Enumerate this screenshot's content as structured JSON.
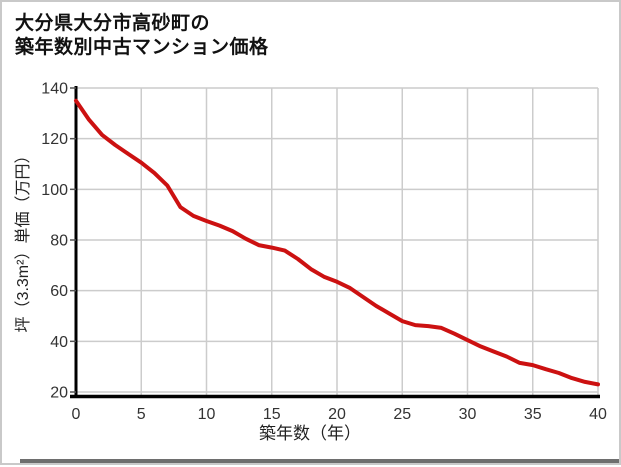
{
  "page": {
    "title_line1": "大分県大分市高砂町の",
    "title_line2": "築年数別中古マンション価格"
  },
  "chart_data": {
    "type": "line",
    "title": "大分県大分市高砂町の築年数別中古マンション価格",
    "xlabel": "築年数（年）",
    "ylabel": "坪（3.3m²）単価（万円）",
    "series": [
      {
        "name": "坪単価",
        "x": [
          0,
          1,
          2,
          3,
          4,
          5,
          6,
          7,
          8,
          9,
          10,
          11,
          12,
          13,
          14,
          15,
          16,
          17,
          18,
          19,
          20,
          21,
          22,
          23,
          24,
          25,
          26,
          27,
          28,
          29,
          30,
          31,
          32,
          33,
          34,
          35,
          36,
          37,
          38,
          39,
          40
        ],
        "values": [
          135,
          127.5,
          121.5,
          117.5,
          114,
          110.5,
          106.5,
          101.5,
          93,
          89.5,
          87.5,
          85.7,
          83.5,
          80.5,
          78,
          77,
          75.8,
          72.5,
          68.5,
          65.5,
          63.5,
          61,
          57.5,
          54,
          51,
          48,
          46.4,
          46,
          45.3,
          43,
          40.5,
          38,
          36,
          34,
          31.5,
          30.6,
          29,
          27.5,
          25.5,
          24,
          23
        ]
      }
    ],
    "xlim": [
      0,
      40
    ],
    "ylim": [
      20,
      140
    ],
    "x_ticks": [
      0,
      5,
      10,
      15,
      20,
      25,
      30,
      35,
      40
    ],
    "y_ticks": [
      20,
      40,
      60,
      80,
      100,
      120,
      140
    ],
    "grid": true,
    "legend": "none",
    "colors": {
      "line": "#cc1111",
      "grid": "#cccccc",
      "axis": "#000000",
      "tick_label": "#333333",
      "title": "#111111"
    }
  }
}
